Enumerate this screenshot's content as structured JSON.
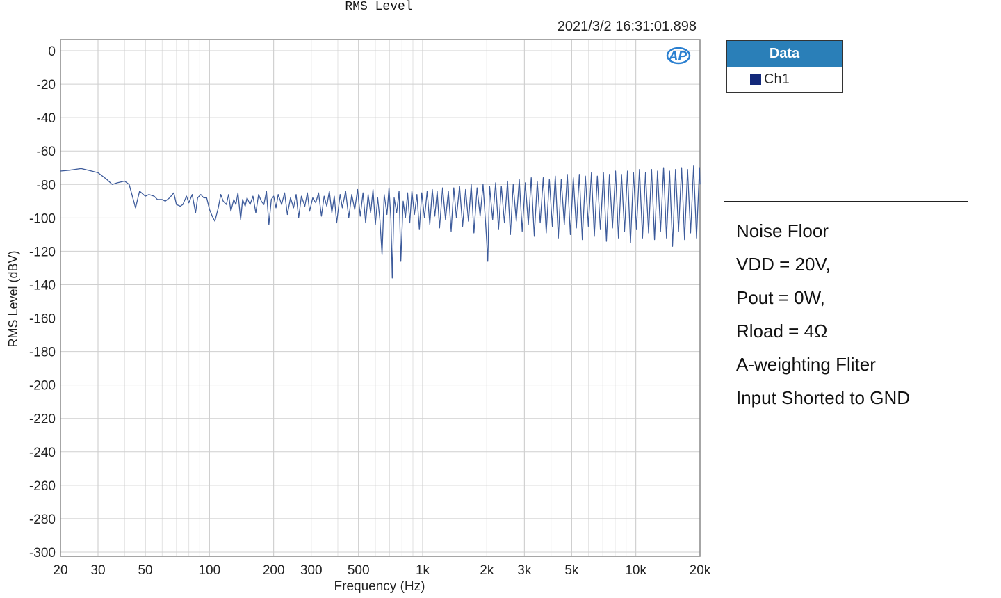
{
  "chart_data": {
    "type": "line",
    "title": "RMS Level",
    "timestamp": "2021/3/2 16:31:01.898",
    "xlabel": "Frequency (Hz)",
    "ylabel": "RMS Level (dBV)",
    "xscale": "log",
    "xlim": [
      20,
      20000
    ],
    "ylim": [
      -300,
      0
    ],
    "x_ticks": [
      {
        "v": 20,
        "l": "20"
      },
      {
        "v": 30,
        "l": "30"
      },
      {
        "v": 50,
        "l": "50"
      },
      {
        "v": 100,
        "l": "100"
      },
      {
        "v": 200,
        "l": "200"
      },
      {
        "v": 300,
        "l": "300"
      },
      {
        "v": 500,
        "l": "500"
      },
      {
        "v": 1000,
        "l": "1k"
      },
      {
        "v": 2000,
        "l": "2k"
      },
      {
        "v": 3000,
        "l": "3k"
      },
      {
        "v": 5000,
        "l": "5k"
      },
      {
        "v": 10000,
        "l": "10k"
      },
      {
        "v": 20000,
        "l": "20k"
      }
    ],
    "y_ticks": [
      0,
      -20,
      -40,
      -60,
      -80,
      -100,
      -120,
      -140,
      -160,
      -180,
      -200,
      -220,
      -240,
      -260,
      -280,
      -300
    ],
    "grid": true,
    "legend": {
      "title": "Data",
      "placement": "right-top",
      "entries": [
        {
          "name": "Ch1",
          "color": "#13297a"
        }
      ]
    },
    "line_color": "#3d5b9b",
    "series": [
      {
        "name": "Ch1",
        "points": [
          [
            20,
            -72
          ],
          [
            22,
            -71.5
          ],
          [
            25,
            -70.5
          ],
          [
            28,
            -72
          ],
          [
            30,
            -73
          ],
          [
            33,
            -77
          ],
          [
            35,
            -80
          ],
          [
            37,
            -79
          ],
          [
            40,
            -78
          ],
          [
            42,
            -80
          ],
          [
            45,
            -94
          ],
          [
            47,
            -84
          ],
          [
            50,
            -87
          ],
          [
            52,
            -86
          ],
          [
            55,
            -87
          ],
          [
            57,
            -89
          ],
          [
            60,
            -89
          ],
          [
            62,
            -90
          ],
          [
            65,
            -88
          ],
          [
            68,
            -85
          ],
          [
            70,
            -92
          ],
          [
            73,
            -93
          ],
          [
            75,
            -92
          ],
          [
            78,
            -87
          ],
          [
            80,
            -91
          ],
          [
            83,
            -86
          ],
          [
            86,
            -97
          ],
          [
            88,
            -88
          ],
          [
            91,
            -86
          ],
          [
            94,
            -88
          ],
          [
            97,
            -88
          ],
          [
            100,
            -95
          ],
          [
            103,
            -99
          ],
          [
            106,
            -102
          ],
          [
            110,
            -94
          ],
          [
            113,
            -86
          ],
          [
            116,
            -90
          ],
          [
            120,
            -92
          ],
          [
            123,
            -86
          ],
          [
            126,
            -96
          ],
          [
            130,
            -89
          ],
          [
            133,
            -92
          ],
          [
            136,
            -85
          ],
          [
            140,
            -101
          ],
          [
            143,
            -89
          ],
          [
            147,
            -93
          ],
          [
            150,
            -88
          ],
          [
            155,
            -92
          ],
          [
            160,
            -87
          ],
          [
            165,
            -97
          ],
          [
            170,
            -86
          ],
          [
            175,
            -90
          ],
          [
            180,
            -92
          ],
          [
            185,
            -84
          ],
          [
            190,
            -104
          ],
          [
            195,
            -89
          ],
          [
            200,
            -87
          ],
          [
            205,
            -94
          ],
          [
            210,
            -86
          ],
          [
            218,
            -92
          ],
          [
            225,
            -85
          ],
          [
            232,
            -98
          ],
          [
            240,
            -88
          ],
          [
            248,
            -94
          ],
          [
            255,
            -86
          ],
          [
            262,
            -100
          ],
          [
            270,
            -87
          ],
          [
            280,
            -93
          ],
          [
            288,
            -85
          ],
          [
            295,
            -96
          ],
          [
            305,
            -88
          ],
          [
            315,
            -91
          ],
          [
            325,
            -85
          ],
          [
            335,
            -99
          ],
          [
            345,
            -87
          ],
          [
            355,
            -93
          ],
          [
            365,
            -84
          ],
          [
            375,
            -97
          ],
          [
            385,
            -87
          ],
          [
            395,
            -103
          ],
          [
            410,
            -86
          ],
          [
            420,
            -94
          ],
          [
            435,
            -84
          ],
          [
            450,
            -100
          ],
          [
            465,
            -86
          ],
          [
            480,
            -95
          ],
          [
            495,
            -83
          ],
          [
            510,
            -99
          ],
          [
            525,
            -85
          ],
          [
            540,
            -103
          ],
          [
            555,
            -86
          ],
          [
            570,
            -97
          ],
          [
            585,
            -83
          ],
          [
            600,
            -104
          ],
          [
            615,
            -88
          ],
          [
            630,
            -101
          ],
          [
            645,
            -122
          ],
          [
            660,
            -86
          ],
          [
            680,
            -98
          ],
          [
            695,
            -82
          ],
          [
            710,
            -101
          ],
          [
            720,
            -136
          ],
          [
            735,
            -88
          ],
          [
            755,
            -97
          ],
          [
            775,
            -84
          ],
          [
            790,
            -126
          ],
          [
            810,
            -90
          ],
          [
            830,
            -100
          ],
          [
            850,
            -85
          ],
          [
            870,
            -103
          ],
          [
            890,
            -84
          ],
          [
            915,
            -98
          ],
          [
            940,
            -86
          ],
          [
            965,
            -107
          ],
          [
            990,
            -85
          ],
          [
            1020,
            -100
          ],
          [
            1050,
            -84
          ],
          [
            1080,
            -104
          ],
          [
            1110,
            -83
          ],
          [
            1140,
            -99
          ],
          [
            1170,
            -84
          ],
          [
            1200,
            -106
          ],
          [
            1240,
            -82
          ],
          [
            1280,
            -101
          ],
          [
            1320,
            -84
          ],
          [
            1360,
            -108
          ],
          [
            1400,
            -82
          ],
          [
            1440,
            -100
          ],
          [
            1490,
            -81
          ],
          [
            1540,
            -105
          ],
          [
            1590,
            -83
          ],
          [
            1640,
            -102
          ],
          [
            1690,
            -80
          ],
          [
            1740,
            -109
          ],
          [
            1800,
            -82
          ],
          [
            1860,
            -99
          ],
          [
            1920,
            -80
          ],
          [
            1980,
            -106
          ],
          [
            2020,
            -126
          ],
          [
            2060,
            -81
          ],
          [
            2130,
            -101
          ],
          [
            2200,
            -79
          ],
          [
            2270,
            -107
          ],
          [
            2340,
            -81
          ],
          [
            2420,
            -103
          ],
          [
            2500,
            -78
          ],
          [
            2580,
            -110
          ],
          [
            2660,
            -80
          ],
          [
            2750,
            -102
          ],
          [
            2840,
            -77
          ],
          [
            2930,
            -108
          ],
          [
            3030,
            -79
          ],
          [
            3130,
            -104
          ],
          [
            3230,
            -76
          ],
          [
            3340,
            -111
          ],
          [
            3450,
            -78
          ],
          [
            3560,
            -103
          ],
          [
            3680,
            -76
          ],
          [
            3800,
            -109
          ],
          [
            3930,
            -77
          ],
          [
            4060,
            -105
          ],
          [
            4190,
            -75
          ],
          [
            4330,
            -112
          ],
          [
            4470,
            -77
          ],
          [
            4620,
            -104
          ],
          [
            4770,
            -74
          ],
          [
            4930,
            -110
          ],
          [
            5090,
            -76
          ],
          [
            5260,
            -106
          ],
          [
            5430,
            -74
          ],
          [
            5610,
            -113
          ],
          [
            5800,
            -75
          ],
          [
            5990,
            -105
          ],
          [
            6190,
            -73
          ],
          [
            6390,
            -111
          ],
          [
            6600,
            -75
          ],
          [
            6820,
            -107
          ],
          [
            7050,
            -73
          ],
          [
            7280,
            -114
          ],
          [
            7520,
            -74
          ],
          [
            7770,
            -106
          ],
          [
            8030,
            -72
          ],
          [
            8290,
            -112
          ],
          [
            8570,
            -74
          ],
          [
            8850,
            -108
          ],
          [
            9140,
            -72
          ],
          [
            9440,
            -115
          ],
          [
            9750,
            -73
          ],
          [
            10070,
            -107
          ],
          [
            10400,
            -71
          ],
          [
            10750,
            -112
          ],
          [
            11100,
            -73
          ],
          [
            11470,
            -109
          ],
          [
            11850,
            -71
          ],
          [
            12240,
            -113
          ],
          [
            12640,
            -72
          ],
          [
            13060,
            -108
          ],
          [
            13490,
            -70
          ],
          [
            13930,
            -112
          ],
          [
            14390,
            -72
          ],
          [
            14870,
            -117
          ],
          [
            15360,
            -71
          ],
          [
            15860,
            -108
          ],
          [
            16390,
            -70
          ],
          [
            16930,
            -113
          ],
          [
            17490,
            -71
          ],
          [
            18060,
            -109
          ],
          [
            18660,
            -69
          ],
          [
            19270,
            -112
          ],
          [
            19900,
            -70
          ],
          [
            20000,
            -80
          ]
        ]
      }
    ]
  },
  "notes": [
    "Noise Floor",
    "VDD = 20V,",
    "Pout = 0W,",
    "Rload = 4Ω",
    "A-weighting Fliter",
    "Input Shorted to GND"
  ],
  "logo": "AP"
}
